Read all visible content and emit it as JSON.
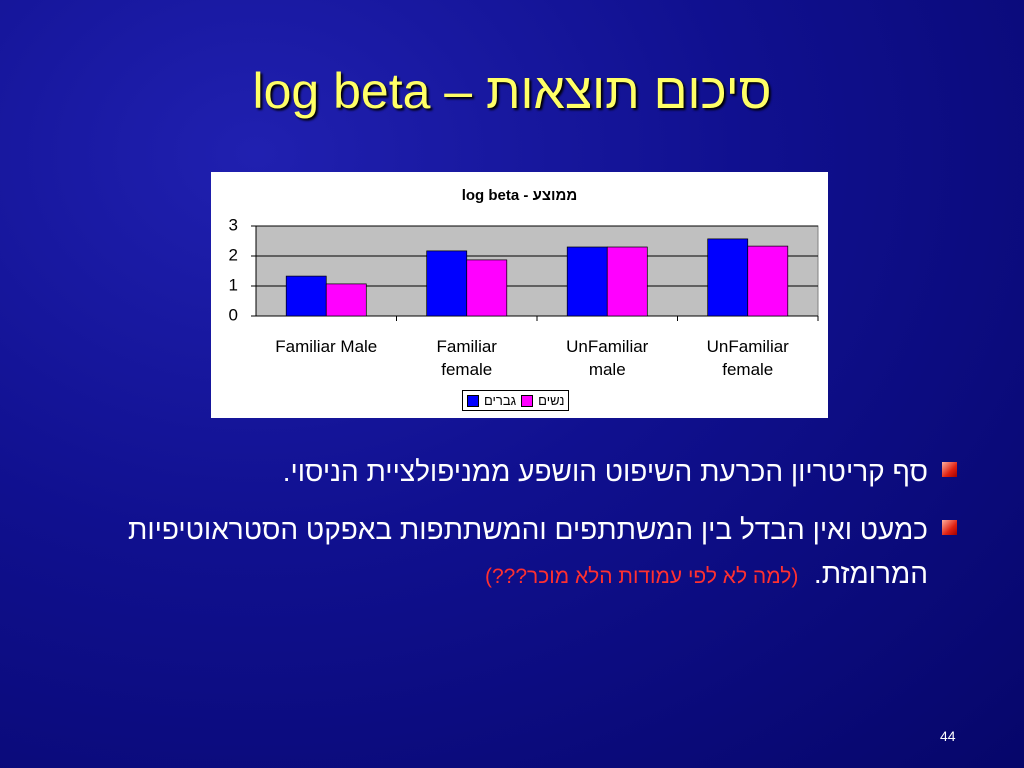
{
  "slide": {
    "title": "סיכום תוצאות – log beta",
    "bullets": [
      "סף קריטריון הכרעת השיפוט הושפע ממניפולציית הניסוי.",
      "כמעט ואין הבדל בין המשתתפים והמשתתפות באפקט הסטראוטיפיות המרומזת."
    ],
    "note": "(למה לא לפי עמודות הלא מוכר???)",
    "page_number": "44"
  },
  "chart_data": {
    "type": "bar",
    "title": "ממוצע - log beta",
    "categories": [
      "Familiar Male",
      "Familiar female",
      "UnFamiliar male",
      "UnFamiliar female"
    ],
    "series": [
      {
        "name": "גברים",
        "color": "#0000ff",
        "values": [
          1.33,
          2.17,
          2.3,
          2.57
        ]
      },
      {
        "name": "נשים",
        "color": "#ff00ff",
        "values": [
          1.07,
          1.87,
          2.3,
          2.33
        ]
      }
    ],
    "ylim": [
      0,
      3
    ],
    "yticks": [
      0,
      1,
      2,
      3
    ],
    "grid": true
  }
}
